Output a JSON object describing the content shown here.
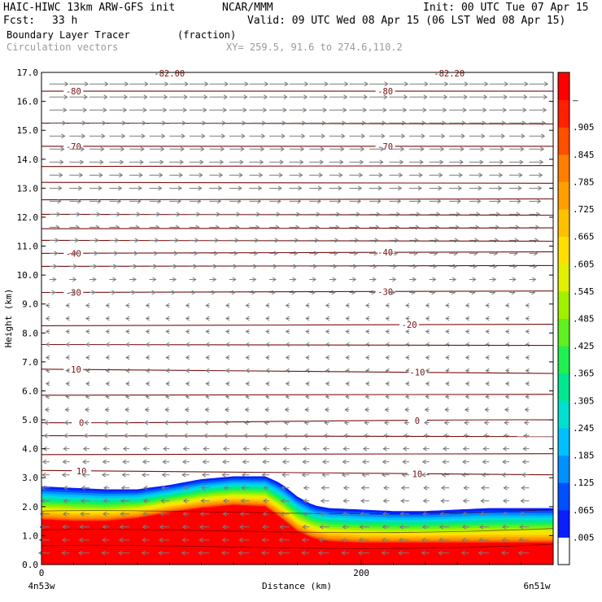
{
  "header": {
    "model": "HAIC-HIWC 13km ARW-GFS init",
    "org": "NCAR/MMM",
    "init": "Init: 00 UTC Tue 07 Apr 15",
    "fcst_label": "Fcst:",
    "fcst_value": "33 h",
    "valid": "Valid: 09 UTC Wed 08 Apr 15 (06 LST Wed 08 Apr 15)",
    "field1_name": "Boundary Layer Tracer",
    "field1_units": "(fraction)",
    "field2_name": "Circulation vectors",
    "xy_label": "XY= 259.5, 91.6 to 274.6,110.2"
  },
  "chart_data": {
    "type": "heatmap",
    "title": "Boundary Layer Tracer (fraction)",
    "xlabel": "Distance (km)",
    "ylabel": "Height (km)",
    "xlim": [
      0,
      320
    ],
    "ylim": [
      0,
      17
    ],
    "x_ticks": [
      0,
      200
    ],
    "x_tick_labels": [
      "0",
      "200"
    ],
    "x_end_labels": {
      "left": "4n53w",
      "right": "6n51w"
    },
    "y_ticks": [
      0.0,
      1.0,
      2.0,
      3.0,
      4.0,
      5.0,
      6.0,
      7.0,
      8.0,
      9.0,
      10.0,
      11.0,
      12.0,
      13.0,
      14.0,
      15.0,
      16.0,
      17.0
    ],
    "y_tick_labels": [
      "0.0",
      "1.0",
      "2.0",
      "3.0",
      "4.0",
      "5.0",
      "6.0",
      "7.0",
      "8.0",
      "9.0",
      "10.0",
      "11.0",
      "12.0",
      "13.0",
      "14.0",
      "15.0",
      "16.0",
      "17.0"
    ],
    "colorbar": {
      "labels": [
        ".005",
        ".065",
        ".125",
        ".185",
        ".245",
        ".305",
        ".365",
        ".425",
        ".485",
        ".545",
        ".605",
        ".665",
        ".725",
        ".785",
        ".845",
        ".905",
        "–"
      ],
      "colors": [
        "#ffffff",
        "#0a1eff",
        "#0050ff",
        "#0090ff",
        "#00c0ff",
        "#00e0d0",
        "#00e890",
        "#20f050",
        "#60f020",
        "#a0f000",
        "#e0f000",
        "#ffe000",
        "#ffc000",
        "#ffa000",
        "#ff8000",
        "#ff5000",
        "#ff2000",
        "#ff0000"
      ]
    },
    "tracer_top_km": {
      "x": [
        0,
        20,
        40,
        60,
        80,
        100,
        120,
        140,
        150,
        160,
        170,
        180,
        200,
        220,
        240,
        260,
        280,
        300,
        320
      ],
      "outer": [
        2.7,
        2.65,
        2.6,
        2.6,
        2.75,
        2.95,
        3.05,
        3.05,
        2.8,
        2.35,
        2.05,
        1.95,
        1.9,
        1.85,
        1.85,
        1.9,
        1.95,
        1.95,
        1.95
      ],
      "red_top": [
        1.55,
        1.5,
        1.5,
        1.6,
        1.8,
        1.95,
        2.05,
        2.0,
        1.6,
        1.15,
        0.9,
        0.8,
        0.75,
        0.75,
        0.75,
        0.75,
        0.75,
        0.75,
        0.75
      ]
    },
    "isotherms": [
      {
        "value": "-80",
        "y_left": 16.35,
        "y_right": 16.35,
        "label_x": [
          20,
          215
        ]
      },
      {
        "value": "-70",
        "y_left": 14.45,
        "y_right": 14.45,
        "label_x": [
          20,
          215
        ]
      },
      {
        "value": "-40",
        "y_left": 10.75,
        "y_right": 10.8,
        "label_x": [
          20,
          215
        ]
      },
      {
        "value": "-30",
        "y_left": 9.4,
        "y_right": 9.45,
        "label_x": [
          20,
          215
        ]
      },
      {
        "value": "-20",
        "y_left": 8.25,
        "y_right": 8.3,
        "label_x": [
          230
        ]
      },
      {
        "value": "-10",
        "y_left": 6.75,
        "y_right": 6.6,
        "label_x": [
          20,
          235
        ]
      },
      {
        "value": "0",
        "y_left": 4.9,
        "y_right": 5.0,
        "label_x": [
          25,
          235
        ]
      },
      {
        "value": "10",
        "y_left": 3.25,
        "y_right": 3.1,
        "label_x": [
          25,
          235
        ]
      }
    ],
    "top_labels": [
      "-82.00",
      "-82.20"
    ],
    "vectors": {
      "upper_direction": "east",
      "lower_direction": "west",
      "transition_km": 9.0
    }
  }
}
